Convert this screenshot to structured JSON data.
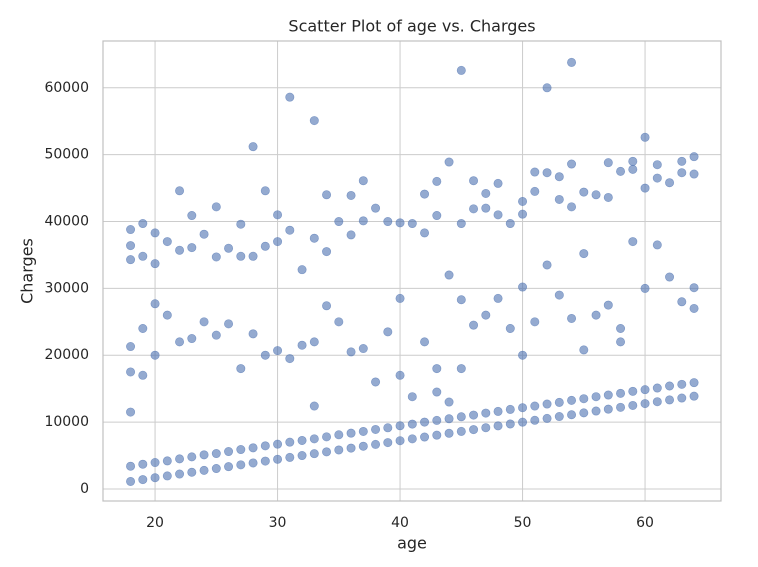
{
  "chart_data": {
    "type": "scatter",
    "title": "Scatter Plot of age vs. Charges",
    "x_label": "age",
    "y_label": "Charges",
    "color": "#4c72b0",
    "opacity": 0.6,
    "grid": true,
    "xlim": [
      15.75,
      66.2
    ],
    "ylim": [
      -1800,
      67000
    ],
    "xticks": [
      20,
      30,
      40,
      50,
      60
    ],
    "yticks": [
      0,
      10000,
      20000,
      30000,
      40000,
      50000,
      60000
    ],
    "x": [
      18,
      18,
      19,
      19,
      20,
      20,
      21,
      21,
      22,
      22,
      23,
      23,
      24,
      24,
      25,
      25,
      26,
      26,
      27,
      27,
      28,
      28,
      29,
      29,
      30,
      30,
      31,
      31,
      32,
      32,
      33,
      33,
      34,
      34,
      35,
      35,
      36,
      36,
      37,
      37,
      38,
      38,
      39,
      39,
      40,
      40,
      41,
      41,
      42,
      42,
      43,
      43,
      44,
      44,
      45,
      45,
      46,
      46,
      47,
      47,
      48,
      48,
      49,
      49,
      50,
      50,
      51,
      51,
      52,
      52,
      53,
      53,
      54,
      54,
      55,
      55,
      56,
      56,
      57,
      57,
      58,
      58,
      59,
      59,
      60,
      60,
      61,
      61,
      62,
      62,
      63,
      63,
      64,
      64,
      18,
      18,
      18,
      19,
      19,
      20,
      20,
      21,
      22,
      23,
      24,
      25,
      26,
      27,
      28,
      29,
      30,
      31,
      32,
      33,
      34,
      35,
      36,
      37,
      38,
      39,
      40,
      40,
      41,
      42,
      43,
      44,
      45,
      46,
      47,
      48,
      49,
      50,
      50,
      51,
      52,
      53,
      54,
      55,
      56,
      57,
      58,
      59,
      60,
      61,
      62,
      63,
      64,
      64,
      33,
      43,
      45,
      55,
      58,
      18,
      18,
      18,
      19,
      19,
      20,
      20,
      21,
      22,
      22,
      23,
      23,
      24,
      25,
      25,
      26,
      27,
      27,
      28,
      28,
      29,
      29,
      30,
      30,
      31,
      31,
      32,
      33,
      33,
      34,
      34,
      35,
      36,
      36,
      37,
      37,
      38,
      39,
      40,
      41,
      42,
      42,
      43,
      43,
      44,
      44,
      45,
      45,
      46,
      46,
      47,
      47,
      48,
      48,
      49,
      50,
      50,
      51,
      51,
      52,
      52,
      53,
      53,
      54,
      54,
      54,
      55,
      56,
      57,
      57,
      58,
      59,
      59,
      60,
      60,
      61,
      61,
      62,
      63,
      63,
      64,
      64
    ],
    "y": [
      1120,
      3400,
      1400,
      3700,
      1680,
      3950,
      1950,
      4200,
      2230,
      4500,
      2500,
      4800,
      2780,
      5100,
      3060,
      5300,
      3340,
      5600,
      3610,
      5900,
      3890,
      6150,
      4170,
      6450,
      4440,
      6700,
      4720,
      7000,
      5000,
      7250,
      5280,
      7500,
      5550,
      7800,
      5830,
      8100,
      6110,
      8350,
      6390,
      8600,
      6660,
      8900,
      6940,
      9150,
      7220,
      9450,
      7500,
      9700,
      7770,
      10000,
      8050,
      10250,
      8330,
      10500,
      8610,
      10800,
      8880,
      11050,
      9160,
      11350,
      9440,
      11600,
      9720,
      11900,
      9990,
      12150,
      10270,
      12400,
      10550,
      12700,
      10830,
      12950,
      11100,
      13250,
      11380,
      13500,
      11660,
      13800,
      11940,
      14050,
      12210,
      14300,
      12490,
      14600,
      12770,
      14850,
      13050,
      15100,
      13320,
      15400,
      13600,
      15650,
      13880,
      15900,
      21300,
      17500,
      11500,
      24000,
      17000,
      27700,
      20000,
      26000,
      22000,
      22500,
      25000,
      23000,
      24700,
      18000,
      23200,
      20000,
      20700,
      19500,
      21500,
      22000,
      27400,
      25000,
      20500,
      21000,
      16000,
      23500,
      28500,
      17000,
      13800,
      22000,
      14500,
      13000,
      28300,
      24500,
      26000,
      28500,
      24000,
      30200,
      20000,
      25000,
      33500,
      29000,
      25500,
      35200,
      26000,
      27500,
      24000,
      37000,
      30000,
      36500,
      31700,
      28000,
      30100,
      27000,
      12400,
      18000,
      18000,
      20800,
      22000,
      38800,
      36400,
      34300,
      39700,
      34800,
      38300,
      33700,
      37000,
      44600,
      35700,
      40900,
      36100,
      38100,
      42200,
      34700,
      36000,
      39600,
      34800,
      51200,
      34800,
      44600,
      36300,
      41000,
      37000,
      58600,
      38700,
      32800,
      55100,
      37500,
      44000,
      35500,
      40000,
      43900,
      38000,
      46100,
      40100,
      42000,
      40000,
      39800,
      39700,
      44100,
      38300,
      46000,
      40900,
      48900,
      32000,
      62600,
      39700,
      46100,
      41900,
      44200,
      42000,
      45700,
      41000,
      39700,
      43000,
      41100,
      47400,
      44500,
      60000,
      47300,
      46700,
      43300,
      63800,
      48600,
      42200,
      44400,
      44000,
      48800,
      43600,
      47500,
      49000,
      47800,
      52600,
      45000,
      48500,
      46500,
      45800,
      49000,
      47300,
      49700,
      47100
    ]
  }
}
